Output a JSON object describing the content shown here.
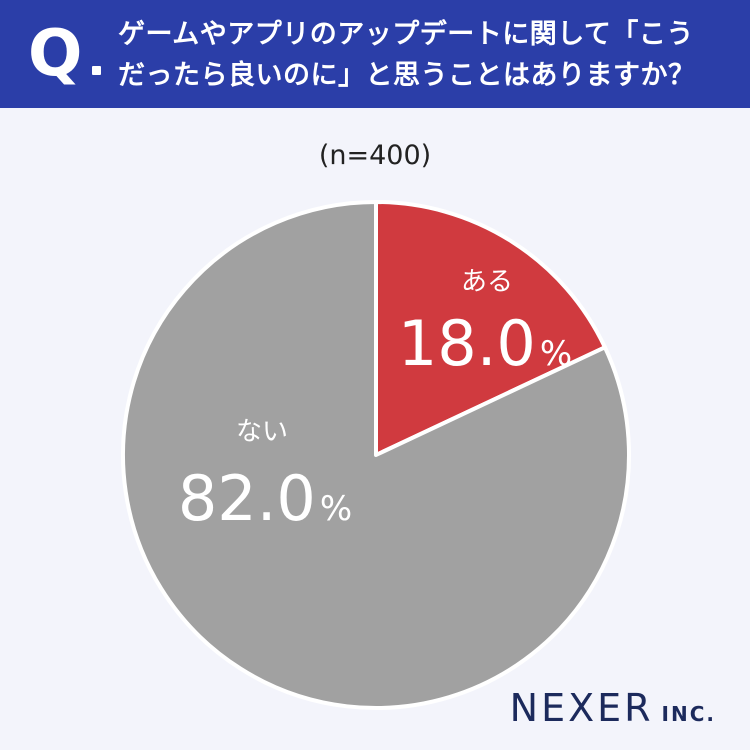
{
  "header": {
    "q_label": "Q",
    "question_lines": [
      "ゲームやアプリのアップデートに関して「こう",
      "だったら良いのに」と思うことはありますか？"
    ]
  },
  "sample_size": "(n=400)",
  "brand": {
    "name": "NEXER",
    "suffix": "INC."
  },
  "colors": {
    "header_bg": "#2b3ea8",
    "yes": "#d03a3f",
    "no": "#a1a1a1"
  },
  "chart_data": {
    "type": "pie",
    "title": "",
    "slices": [
      {
        "label": "ある",
        "value": 18.0,
        "display": "18.0",
        "unit": "%",
        "color": "#d03a3f"
      },
      {
        "label": "ない",
        "value": 82.0,
        "display": "82.0",
        "unit": "%",
        "color": "#a1a1a1"
      }
    ]
  }
}
